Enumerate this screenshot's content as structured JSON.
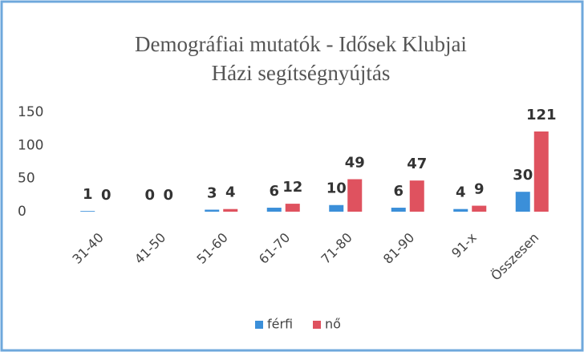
{
  "chart_data": {
    "type": "bar",
    "title": "Demográfiai mutatók - Idősek Klubjai",
    "subtitle": "Házi segítségnyújtás",
    "categories": [
      "31-40",
      "41-50",
      "51-60",
      "61-70",
      "71-80",
      "81-90",
      "91-x",
      "Összesen"
    ],
    "series": [
      {
        "name": "férfi",
        "color": "#3b8fd9",
        "values": [
          1,
          0,
          3,
          6,
          10,
          6,
          4,
          30
        ]
      },
      {
        "name": "nő",
        "color": "#df525f",
        "values": [
          0,
          0,
          4,
          12,
          49,
          47,
          9,
          121
        ]
      }
    ],
    "ylim": [
      0,
      150
    ],
    "yticks": [
      0,
      50,
      100,
      150
    ],
    "grid": false,
    "legend": "bottom"
  }
}
